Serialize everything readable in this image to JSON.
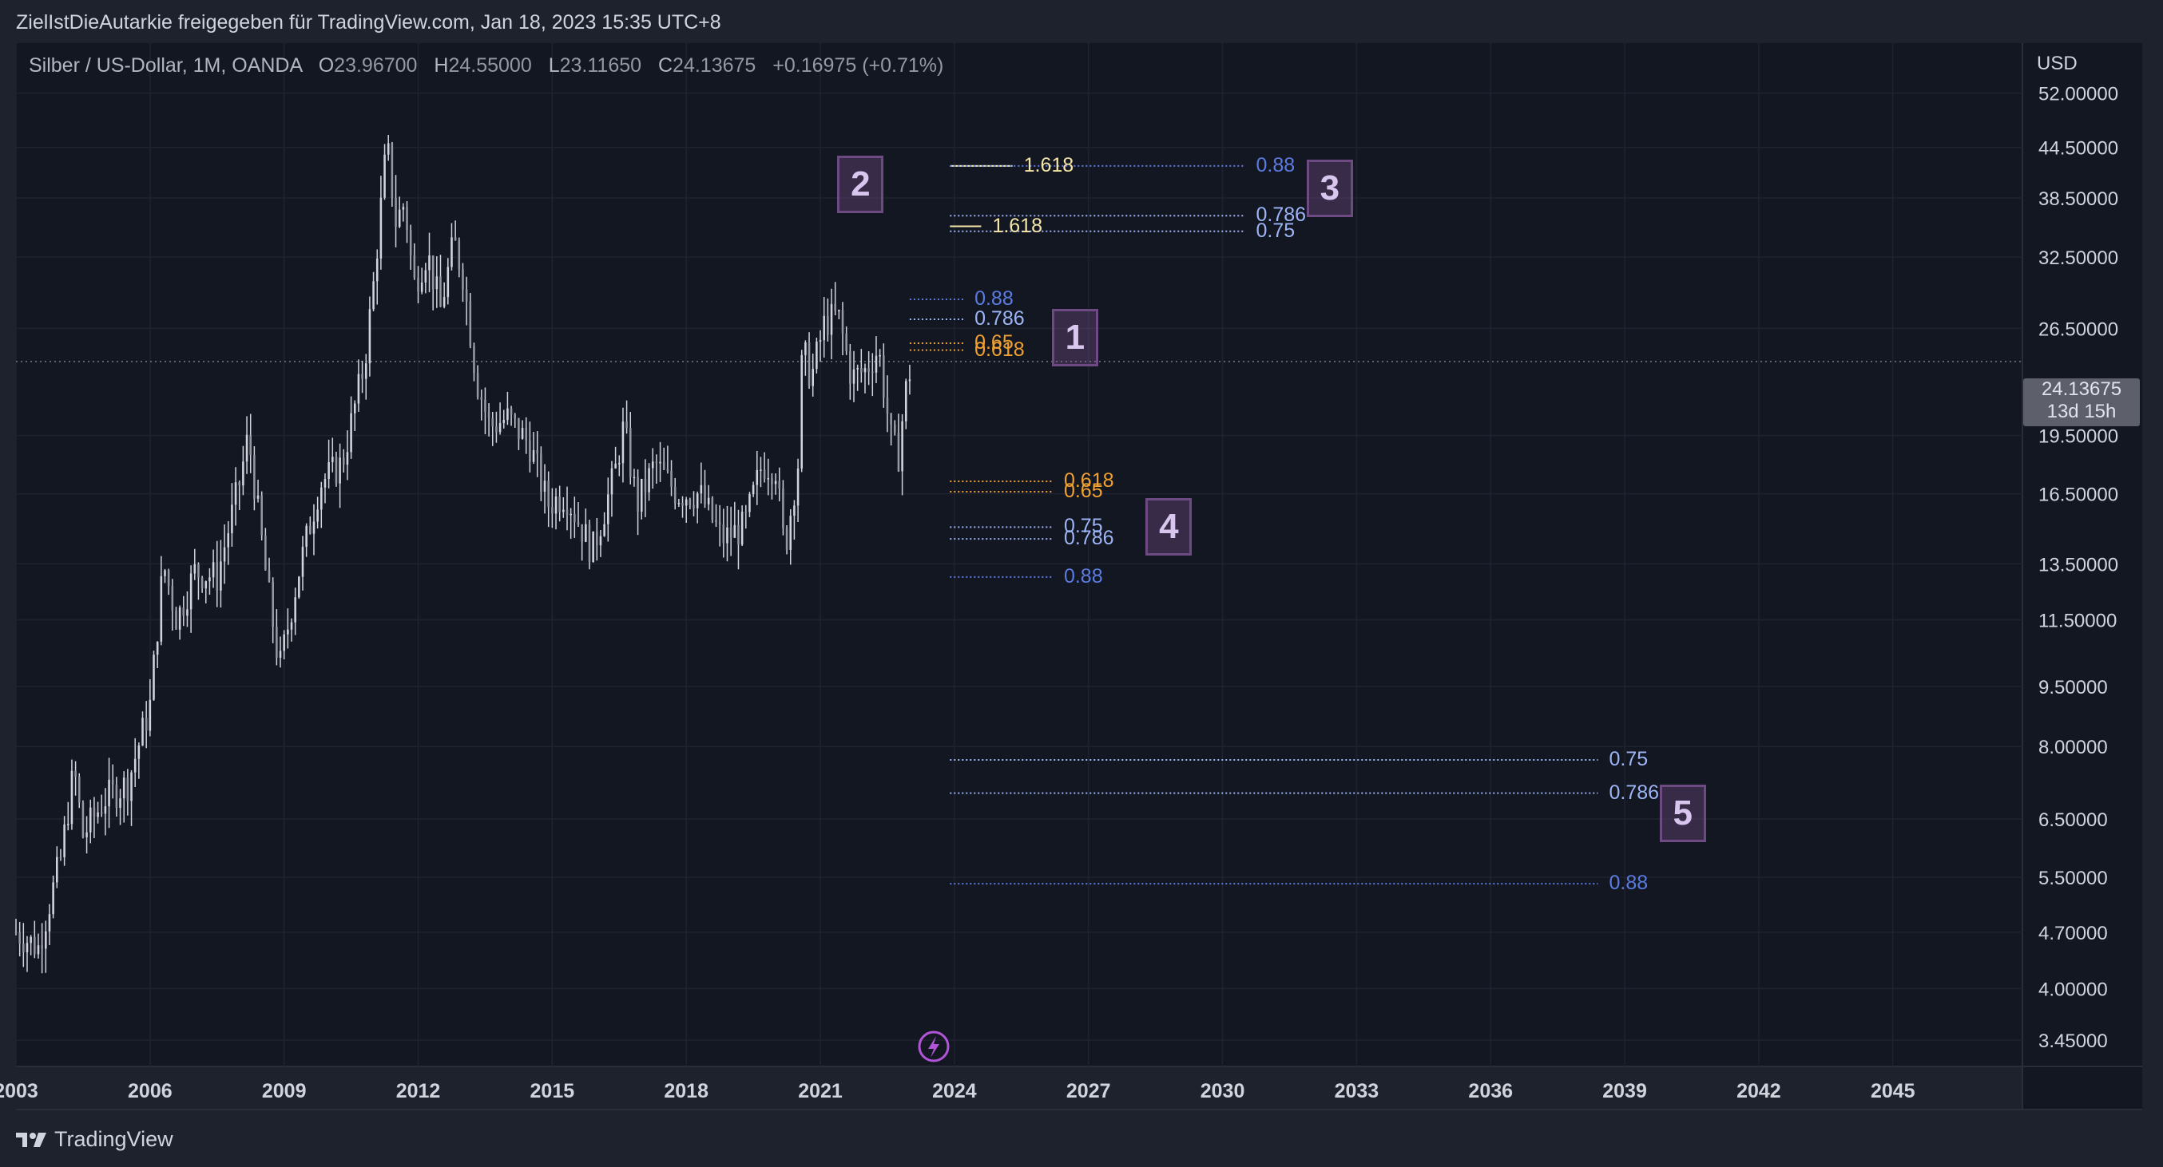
{
  "header": {
    "shared_by": "ZielIstDieAutarkie freigegeben für TradingView.com, Jan 18, 2023 15:35 UTC+8"
  },
  "legend": {
    "symbol": "Silber / US-Dollar, 1M, OANDA",
    "open_label": "O",
    "open": "23.96700",
    "high_label": "H",
    "high": "24.55000",
    "low_label": "L",
    "low": "23.11650",
    "close_label": "C",
    "close": "24.13675",
    "change": "+0.16975 (+0.71%)"
  },
  "axis": {
    "currency": "USD",
    "current_price": "24.13675",
    "countdown": "13d 15h"
  },
  "footer": {
    "brand": "TradingView"
  },
  "colors": {
    "background": "#131722",
    "candle": "#d1d4dc",
    "fib_blue": "#5b7be0",
    "fib_lightblue": "#9db4f5",
    "fib_orange": "#f0a030",
    "fib_yellow": "#f5e6a8",
    "zone_box": "#6d4a82"
  },
  "chart_data": {
    "type": "candlestick",
    "title": "Silber / US-Dollar, 1M, OANDA",
    "scale": "log",
    "ylim": [
      3.2,
      60
    ],
    "y_ticks": [
      "52.00000",
      "44.50000",
      "38.50000",
      "32.50000",
      "26.50000",
      "19.50000",
      "16.50000",
      "13.50000",
      "11.50000",
      "9.50000",
      "8.00000",
      "6.50000",
      "5.50000",
      "4.70000",
      "4.00000",
      "3.45000"
    ],
    "y_tick_values": [
      52,
      44.5,
      38.5,
      32.5,
      26.5,
      19.5,
      16.5,
      13.5,
      11.5,
      9.5,
      8,
      6.5,
      5.5,
      4.7,
      4,
      3.45
    ],
    "x_ticks": [
      "2003",
      "2006",
      "2009",
      "2012",
      "2015",
      "2018",
      "2021",
      "2024",
      "2027",
      "2030",
      "2033",
      "2036",
      "2039",
      "2042",
      "2045"
    ],
    "x_tick_years": [
      2003,
      2006,
      2009,
      2012,
      2015,
      2018,
      2021,
      2024,
      2027,
      2030,
      2033,
      2036,
      2039,
      2042,
      2045
    ],
    "xlim_years": [
      2003,
      2047.9
    ],
    "price_anchors": [
      [
        2003.0,
        4.7
      ],
      [
        2003.5,
        4.5
      ],
      [
        2004.0,
        5.8
      ],
      [
        2004.3,
        7.5
      ],
      [
        2004.5,
        6.2
      ],
      [
        2005.0,
        6.9
      ],
      [
        2005.5,
        7.2
      ],
      [
        2006.0,
        9.0
      ],
      [
        2006.3,
        13.5
      ],
      [
        2006.6,
        11.5
      ],
      [
        2007.0,
        13.2
      ],
      [
        2007.5,
        13.0
      ],
      [
        2008.0,
        17.0
      ],
      [
        2008.2,
        19.5
      ],
      [
        2008.6,
        13.0
      ],
      [
        2008.9,
        10.0
      ],
      [
        2009.3,
        13.0
      ],
      [
        2009.8,
        17.0
      ],
      [
        2010.3,
        18.0
      ],
      [
        2010.8,
        24.0
      ],
      [
        2011.0,
        30.0
      ],
      [
        2011.3,
        45.0
      ],
      [
        2011.5,
        36.0
      ],
      [
        2011.7,
        38.0
      ],
      [
        2011.9,
        30.0
      ],
      [
        2012.2,
        33.0
      ],
      [
        2012.5,
        28.0
      ],
      [
        2012.8,
        34.0
      ],
      [
        2013.0,
        31.0
      ],
      [
        2013.3,
        23.0
      ],
      [
        2013.6,
        20.0
      ],
      [
        2014.0,
        20.5
      ],
      [
        2014.5,
        19.0
      ],
      [
        2014.9,
        16.0
      ],
      [
        2015.3,
        16.5
      ],
      [
        2015.9,
        14.0
      ],
      [
        2016.4,
        17.5
      ],
      [
        2016.6,
        20.0
      ],
      [
        2016.9,
        16.0
      ],
      [
        2017.3,
        18.0
      ],
      [
        2017.8,
        16.5
      ],
      [
        2018.3,
        16.5
      ],
      [
        2018.8,
        14.5
      ],
      [
        2019.3,
        15.0
      ],
      [
        2019.7,
        18.0
      ],
      [
        2020.0,
        17.8
      ],
      [
        2020.2,
        14.0
      ],
      [
        2020.5,
        18.0
      ],
      [
        2020.6,
        25.0
      ],
      [
        2020.8,
        23.0
      ],
      [
        2021.1,
        27.0
      ],
      [
        2021.4,
        27.5
      ],
      [
        2021.7,
        23.0
      ],
      [
        2022.0,
        23.5
      ],
      [
        2022.3,
        25.0
      ],
      [
        2022.6,
        19.0
      ],
      [
        2022.75,
        18.5
      ],
      [
        2022.9,
        22.0
      ],
      [
        2023.05,
        24.1
      ]
    ],
    "fib_levels": [
      {
        "zone": "1",
        "label": "0.88",
        "price": 28.8,
        "x_from": 2023.0,
        "x_to": 2024.2,
        "style": "blue"
      },
      {
        "zone": "1",
        "label": "0.786",
        "price": 27.2,
        "x_from": 2023.0,
        "x_to": 2024.2,
        "style": "lightblue"
      },
      {
        "zone": "1",
        "label": "0.65",
        "price": 25.4,
        "x_from": 2023.0,
        "x_to": 2024.2,
        "style": "orange"
      },
      {
        "zone": "1",
        "label": "0.618",
        "price": 24.9,
        "x_from": 2023.0,
        "x_to": 2024.2,
        "style": "orange"
      },
      {
        "zone": "2",
        "label": "1.618",
        "price": 42.2,
        "x_from": 2023.9,
        "x_to": 2025.3,
        "style": "yellow_solid"
      },
      {
        "zone": "2",
        "label": "1.618",
        "price": 35.5,
        "x_from": 2023.9,
        "x_to": 2024.6,
        "style": "yellow_solid"
      },
      {
        "zone": "3",
        "label": "0.88",
        "price": 42.2,
        "x_from": 2023.9,
        "x_to": 2030.5,
        "style": "blue"
      },
      {
        "zone": "3",
        "label": "0.786",
        "price": 36.6,
        "x_from": 2023.9,
        "x_to": 2030.5,
        "style": "lightblue"
      },
      {
        "zone": "3",
        "label": "0.75",
        "price": 35.0,
        "x_from": 2023.9,
        "x_to": 2030.5,
        "style": "lightblue"
      },
      {
        "zone": "4",
        "label": "0.618",
        "price": 17.1,
        "x_from": 2023.9,
        "x_to": 2026.2,
        "style": "orange"
      },
      {
        "zone": "4",
        "label": "0.65",
        "price": 16.6,
        "x_from": 2023.9,
        "x_to": 2026.2,
        "style": "orange"
      },
      {
        "zone": "4",
        "label": "0.75",
        "price": 15.0,
        "x_from": 2023.9,
        "x_to": 2026.2,
        "style": "lightblue"
      },
      {
        "zone": "4",
        "label": "0.786",
        "price": 14.5,
        "x_from": 2023.9,
        "x_to": 2026.2,
        "style": "lightblue"
      },
      {
        "zone": "4",
        "label": "0.88",
        "price": 13.0,
        "x_from": 2023.9,
        "x_to": 2026.2,
        "style": "blue"
      },
      {
        "zone": "5",
        "label": "0.75",
        "price": 7.7,
        "x_from": 2023.9,
        "x_to": 2038.4,
        "style": "lightblue"
      },
      {
        "zone": "5",
        "label": "0.786",
        "price": 7.0,
        "x_from": 2023.9,
        "x_to": 2038.4,
        "style": "lightblue"
      },
      {
        "zone": "5",
        "label": "0.88",
        "price": 5.4,
        "x_from": 2023.9,
        "x_to": 2038.4,
        "style": "blue"
      }
    ],
    "zones": [
      {
        "id": "1",
        "x": 2026.7,
        "price": 25.8
      },
      {
        "id": "2",
        "x": 2021.9,
        "price": 40.0
      },
      {
        "id": "3",
        "x": 2032.4,
        "price": 39.6
      },
      {
        "id": "4",
        "x": 2028.8,
        "price": 15.0
      },
      {
        "id": "5",
        "x": 2040.3,
        "price": 6.6
      }
    ]
  }
}
